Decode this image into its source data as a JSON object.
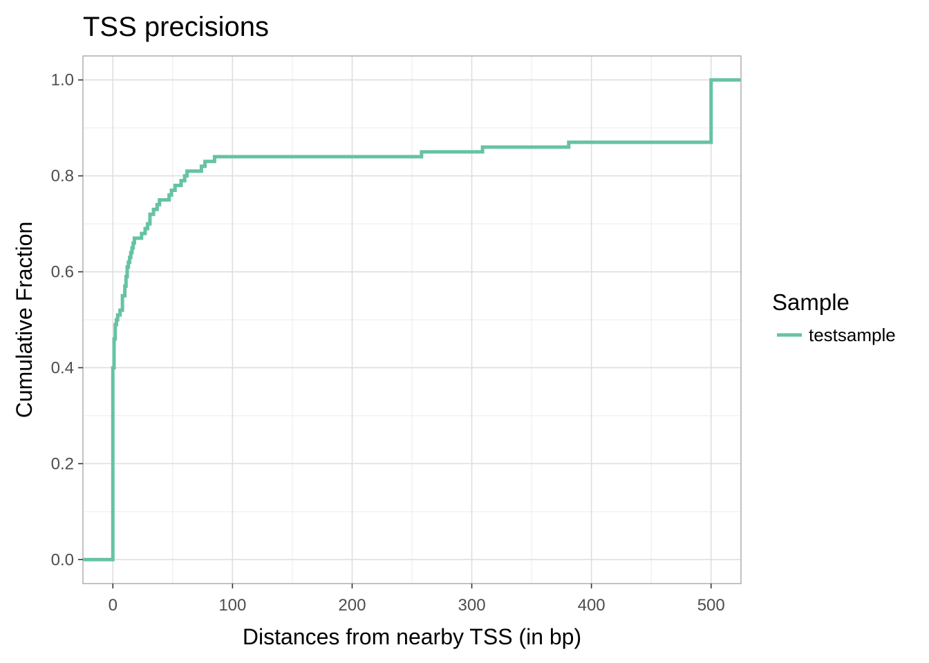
{
  "chart_data": {
    "type": "line",
    "step": true,
    "title": "TSS precisions",
    "xlabel": "Distances from nearby TSS (in bp)",
    "ylabel": "Cumulative Fraction",
    "xlim": [
      -25,
      525
    ],
    "ylim": [
      -0.05,
      1.05
    ],
    "x_ticks": [
      0,
      100,
      200,
      300,
      400,
      500
    ],
    "x_tick_labels": [
      "0",
      "100",
      "200",
      "300",
      "400",
      "500"
    ],
    "y_ticks": [
      0.0,
      0.2,
      0.4,
      0.6,
      0.8,
      1.0
    ],
    "y_tick_labels": [
      "0.0",
      "0.2",
      "0.4",
      "0.6",
      "0.8",
      "1.0"
    ],
    "grid": true,
    "legend": {
      "title": "Sample",
      "position": "right"
    },
    "series": [
      {
        "name": "testsample",
        "color": "#66c2a5",
        "x": [
          -25,
          0,
          1,
          2,
          3,
          4,
          6,
          8,
          10,
          11,
          12,
          13,
          14,
          15,
          16,
          17,
          18,
          19,
          21,
          24,
          27,
          29,
          31,
          34,
          37,
          39,
          44,
          47,
          49,
          52,
          57,
          60,
          62,
          74,
          77,
          85,
          258,
          309,
          381,
          500,
          525
        ],
        "y": [
          0.0,
          0.4,
          0.46,
          0.49,
          0.5,
          0.51,
          0.52,
          0.55,
          0.57,
          0.59,
          0.61,
          0.62,
          0.63,
          0.64,
          0.65,
          0.66,
          0.67,
          0.67,
          0.67,
          0.68,
          0.69,
          0.7,
          0.72,
          0.73,
          0.74,
          0.75,
          0.75,
          0.76,
          0.77,
          0.78,
          0.79,
          0.8,
          0.81,
          0.82,
          0.83,
          0.84,
          0.85,
          0.86,
          0.87,
          1.0,
          1.0
        ]
      }
    ]
  }
}
